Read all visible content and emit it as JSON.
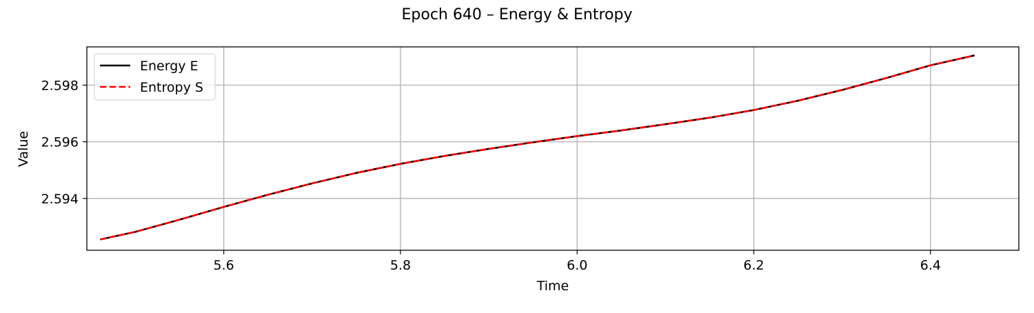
{
  "chart_data": {
    "type": "line",
    "title": "Epoch 640 – Energy & Entropy",
    "xlabel": "Time",
    "ylabel": "Value",
    "xlim": [
      5.445,
      6.5
    ],
    "ylim": [
      2.59217,
      2.59935
    ],
    "xticks": [
      5.6,
      5.8,
      6.0,
      6.2,
      6.4
    ],
    "xtick_labels": [
      "5.6",
      "5.8",
      "6.0",
      "6.2",
      "6.4"
    ],
    "yticks": [
      2.594,
      2.596,
      2.598
    ],
    "ytick_labels": [
      "2.594",
      "2.596",
      "2.598"
    ],
    "grid": true,
    "legend_position": "top-left",
    "series": [
      {
        "name": "Energy E",
        "color": "#000000",
        "dash": "solid",
        "x": [
          5.46,
          5.5,
          5.55,
          5.6,
          5.65,
          5.7,
          5.75,
          5.8,
          5.85,
          5.9,
          5.95,
          6.0,
          6.05,
          6.1,
          6.15,
          6.2,
          6.25,
          6.3,
          6.35,
          6.4,
          6.45
        ],
        "y": [
          2.59255,
          2.59282,
          2.59325,
          2.5937,
          2.59413,
          2.59453,
          2.5949,
          2.59522,
          2.5955,
          2.59575,
          2.59598,
          2.5962,
          2.5964,
          2.59662,
          2.59685,
          2.59712,
          2.59745,
          2.59783,
          2.59825,
          2.5987,
          2.59905
        ]
      },
      {
        "name": "Entropy S",
        "color": "#ff0000",
        "dash": "dashed",
        "x": [
          5.46,
          5.5,
          5.55,
          5.6,
          5.65,
          5.7,
          5.75,
          5.8,
          5.85,
          5.9,
          5.95,
          6.0,
          6.05,
          6.1,
          6.15,
          6.2,
          6.25,
          6.3,
          6.35,
          6.4,
          6.45
        ],
        "y": [
          2.59255,
          2.59282,
          2.59325,
          2.5937,
          2.59413,
          2.59453,
          2.5949,
          2.59522,
          2.5955,
          2.59575,
          2.59598,
          2.5962,
          2.5964,
          2.59662,
          2.59685,
          2.59712,
          2.59745,
          2.59783,
          2.59825,
          2.5987,
          2.59905
        ]
      }
    ]
  }
}
